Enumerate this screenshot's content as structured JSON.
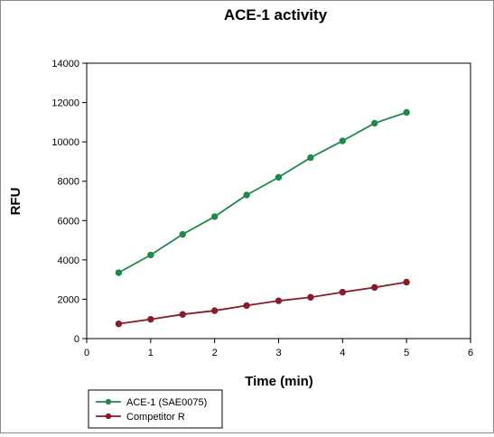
{
  "chart_data": {
    "type": "line",
    "title": "ACE-1 activity",
    "xlabel": "Time (min)",
    "ylabel": "RFU",
    "xlim": [
      0,
      6
    ],
    "ylim": [
      0,
      14000
    ],
    "xticks": [
      0,
      1,
      2,
      3,
      4,
      5,
      6
    ],
    "yticks": [
      0,
      2000,
      4000,
      6000,
      8000,
      10000,
      12000,
      14000
    ],
    "grid": false,
    "legend_position": "bottom-left",
    "series": [
      {
        "name": "ACE-1 (SAE0075)",
        "color": "#1e8a4a",
        "x": [
          0.5,
          1,
          1.5,
          2,
          2.5,
          3,
          3.5,
          4,
          4.5,
          5
        ],
        "y": [
          3350,
          4250,
          5300,
          6200,
          7300,
          8200,
          9200,
          10050,
          10950,
          11500
        ]
      },
      {
        "name": "Competitor R",
        "color": "#8b1a2b",
        "x": [
          0.5,
          1,
          1.5,
          2,
          2.5,
          3,
          3.5,
          4,
          4.5,
          5
        ],
        "y": [
          750,
          980,
          1230,
          1420,
          1680,
          1920,
          2100,
          2360,
          2600,
          2870
        ]
      }
    ]
  }
}
